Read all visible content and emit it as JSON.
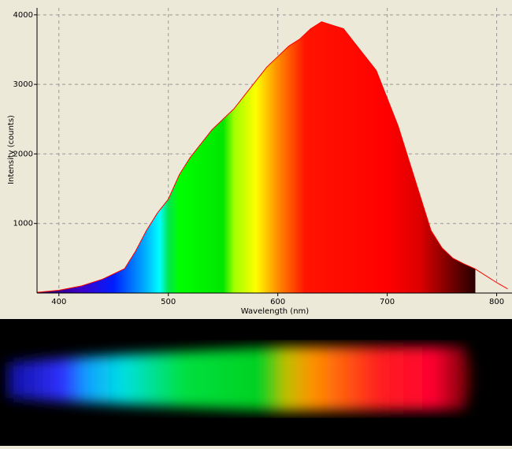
{
  "chart_data": {
    "type": "line",
    "x_label": "Wavelength (nm)",
    "y_label": "Intensity (counts)",
    "x": [
      380,
      400,
      420,
      440,
      460,
      470,
      480,
      490,
      500,
      510,
      520,
      530,
      540,
      550,
      560,
      570,
      580,
      590,
      600,
      610,
      620,
      630,
      640,
      650,
      660,
      670,
      680,
      690,
      700,
      710,
      720,
      730,
      740,
      750,
      760,
      770,
      780,
      790,
      800,
      810
    ],
    "series": [
      {
        "color": "#ff0000",
        "values": [
          10,
          40,
          100,
          200,
          350,
          600,
          900,
          1150,
          1350,
          1700,
          1950,
          2150,
          2350,
          2500,
          2650,
          2850,
          3050,
          3250,
          3400,
          3550,
          3650,
          3800,
          3900,
          3850,
          3800,
          3600,
          3400,
          3200,
          2800,
          2400,
          1900,
          1400,
          900,
          650,
          500,
          420,
          350,
          250,
          150,
          60
        ]
      }
    ],
    "xlim": [
      380,
      814
    ],
    "xticks": [
      400,
      500,
      600,
      700,
      800
    ],
    "ylim": [
      0,
      4100
    ],
    "yticks": [
      1000,
      2000,
      3000,
      4000
    ],
    "grid": true
  }
}
